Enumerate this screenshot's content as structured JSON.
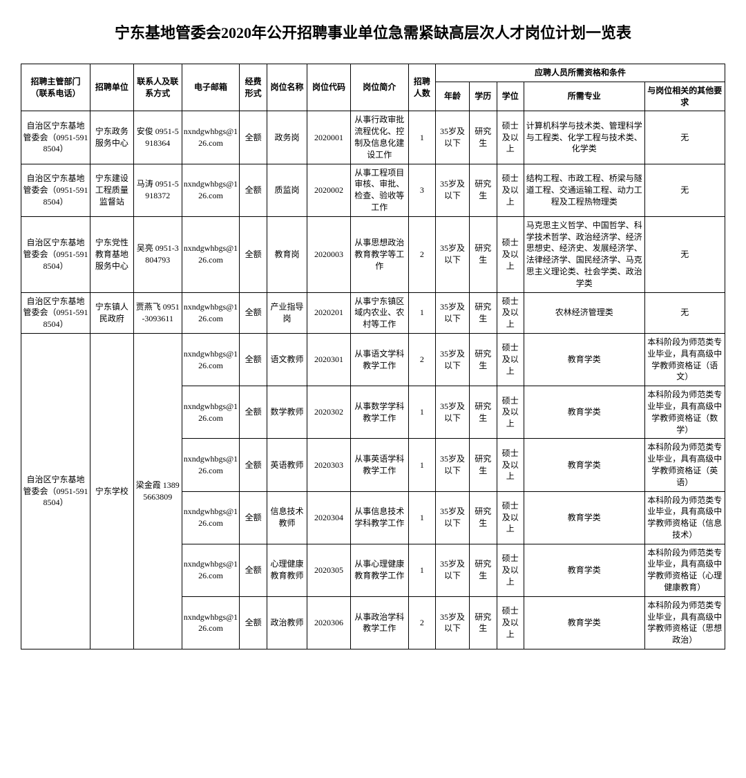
{
  "title": "宁东基地管委会2020年公开招聘事业单位急需紧缺高层次人才岗位计划一览表",
  "headers": {
    "dept": "招聘主管部门（联系电话）",
    "unit": "招聘单位",
    "contact": "联系人及联系方式",
    "email": "电子邮箱",
    "fund": "经费形式",
    "pos": "岗位名称",
    "code": "岗位代码",
    "desc": "岗位简介",
    "num": "招聘人数",
    "qual_group": "应聘人员所需资格和条件",
    "age": "年龄",
    "edu": "学历",
    "degree": "学位",
    "major": "所需专业",
    "other": "与岗位相关的其他要求"
  },
  "dept_a": "自治区宁东基地管委会（0951-5918504）",
  "email": "nxndgwhbgs@126.com",
  "fund": "全额",
  "age": "35岁及以下",
  "edu": "研究生",
  "degree": "硕士及以上",
  "none": "无",
  "r1": {
    "unit": "宁东政务服务中心",
    "contact": "安俊 0951-5918364",
    "pos": "政务岗",
    "code": "2020001",
    "desc": "从事行政审批流程优化、控制及信息化建设工作",
    "num": "1",
    "major": "计算机科学与技术类、管理科学与工程类、化学工程与技术类、化学类"
  },
  "r2": {
    "unit": "宁东建设工程质量监督站",
    "contact": "马涛 0951-5918372",
    "pos": "质监岗",
    "code": "2020002",
    "desc": "从事工程项目审核、审批、检查、验收等工作",
    "num": "3",
    "major": "结构工程、市政工程、桥梁与隧道工程、交通运输工程、动力工程及工程热物理类"
  },
  "r3": {
    "unit": "宁东党性教育基地服务中心",
    "contact": "吴亮 0951-3804793",
    "pos": "教育岗",
    "code": "2020003",
    "desc": "从事思想政治教育教学等工作",
    "num": "2",
    "major": "马克思主义哲学、中国哲学、科学技术哲学、政治经济学、经济思想史、经济史、发展经济学、法律经济学、国民经济学、马克思主义理论类、社会学类、政治学类"
  },
  "r4": {
    "unit": "宁东镇人民政府",
    "contact": "贾燕飞 0951-3093611",
    "pos": "产业指导岗",
    "code": "2020201",
    "desc": "从事宁东镇区域内农业、农村等工作",
    "num": "1",
    "major": "农林经济管理类"
  },
  "school": {
    "unit": "宁东学校",
    "contact": "梁金霞 13895663809",
    "major": "教育学类"
  },
  "s1": {
    "pos": "语文教师",
    "code": "2020301",
    "desc": "从事语文学科教学工作",
    "num": "2",
    "other": "本科阶段为师范类专业毕业，具有高级中学教师资格证（语文）"
  },
  "s2": {
    "pos": "数学教师",
    "code": "2020302",
    "desc": "从事数学学科教学工作",
    "num": "1",
    "other": "本科阶段为师范类专业毕业，具有高级中学教师资格证（数学）"
  },
  "s3": {
    "pos": "英语教师",
    "code": "2020303",
    "desc": "从事英语学科教学工作",
    "num": "1",
    "other": "本科阶段为师范类专业毕业，具有高级中学教师资格证（英语）"
  },
  "s4": {
    "pos": "信息技术教师",
    "code": "2020304",
    "desc": "从事信息技术学科教学工作",
    "num": "1",
    "other": "本科阶段为师范类专业毕业，具有高级中学教师资格证（信息技术）"
  },
  "s5": {
    "pos": "心理健康教育教师",
    "code": "2020305",
    "desc": "从事心理健康教育教学工作",
    "num": "1",
    "other": "本科阶段为师范类专业毕业，具有高级中学教师资格证（心理健康教育）"
  },
  "s6": {
    "pos": "政治教师",
    "code": "2020306",
    "desc": "从事政治学科教学工作",
    "num": "2",
    "other": "本科阶段为师范类专业毕业，具有高级中学教师资格证（思想政治）"
  }
}
